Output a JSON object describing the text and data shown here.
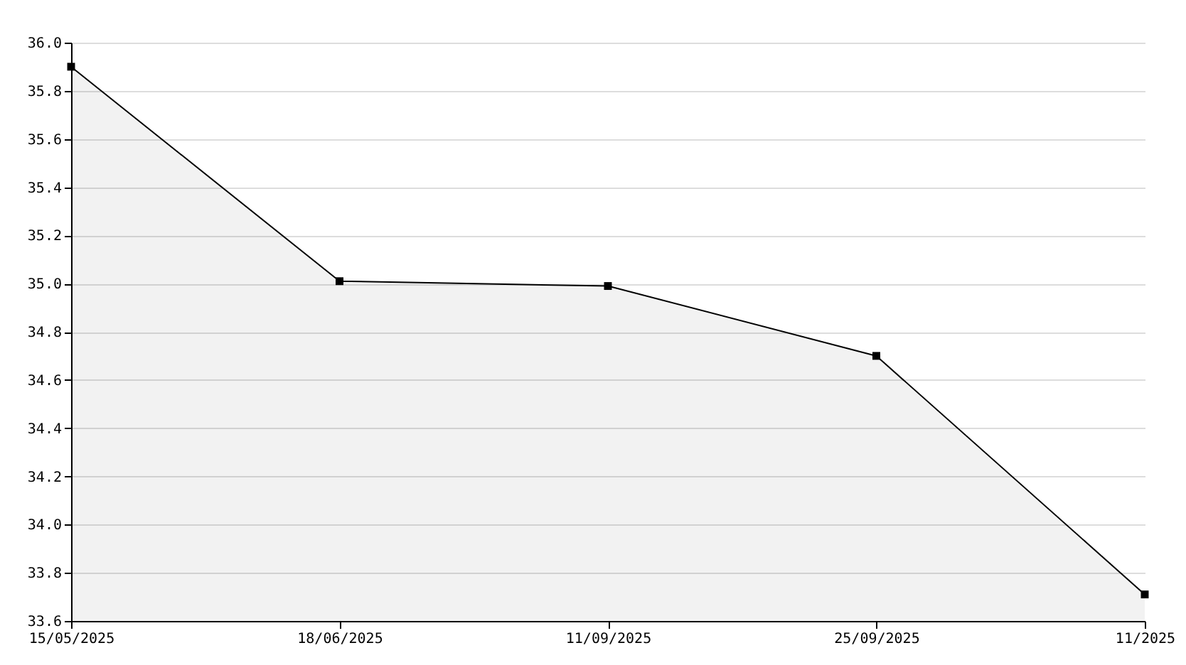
{
  "chart_data": {
    "type": "area",
    "categories": [
      "15/05/2025",
      "18/06/2025",
      "11/09/2025",
      "25/09/2025",
      "11/2025"
    ],
    "series": [
      {
        "color": "#000000",
        "values": [
          35.9,
          35.01,
          34.99,
          34.7,
          33.71
        ]
      }
    ],
    "ylim": [
      33.6,
      36.0
    ],
    "yticks": [
      {
        "value": 33.6,
        "label": "33.6"
      },
      {
        "value": 33.8,
        "label": "33.8"
      },
      {
        "value": 34.0,
        "label": "34.0"
      },
      {
        "value": 34.2,
        "label": "34.2"
      },
      {
        "value": 34.4,
        "label": "34.4"
      },
      {
        "value": 34.6,
        "label": "34.6"
      },
      {
        "value": 34.8,
        "label": "34.8"
      },
      {
        "value": 35.0,
        "label": "35.0"
      },
      {
        "value": 35.2,
        "label": "35.2"
      },
      {
        "value": 35.4,
        "label": "35.4"
      },
      {
        "value": 35.6,
        "label": "35.6"
      },
      {
        "value": 35.8,
        "label": "35.8"
      },
      {
        "value": 36.0,
        "label": "36.0"
      }
    ],
    "grid": "y",
    "marker": "square"
  }
}
